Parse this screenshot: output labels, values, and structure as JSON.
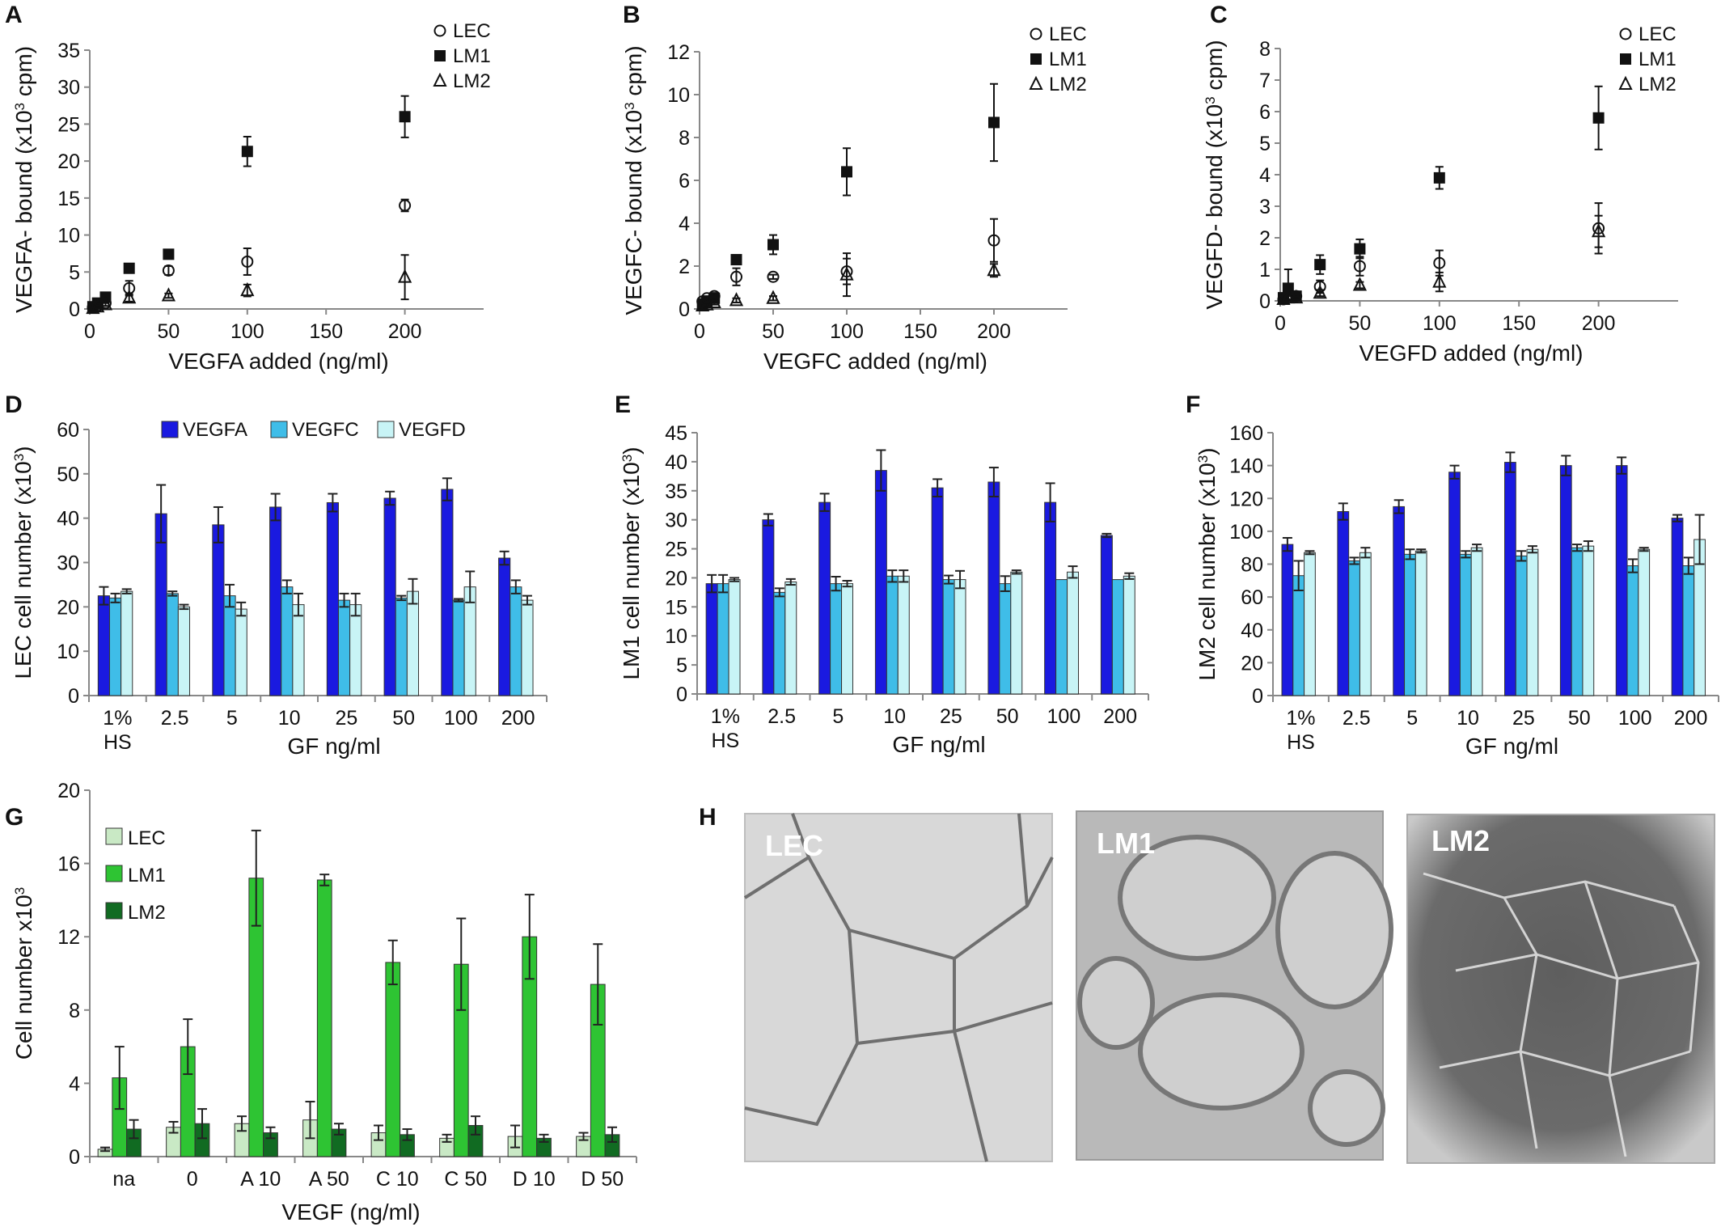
{
  "colors": {
    "VEGFA": "#1a1ae0",
    "VEGFC": "#3fbde8",
    "VEGFD": "#c8f4f6",
    "LEC_green": "#c9e9c5",
    "LM1_green": "#2ec433",
    "LM2_green": "#116b22"
  },
  "chart_data": [
    {
      "panel": "A",
      "type": "scatter",
      "xlabel": "VEGFA added (ng/ml)",
      "ylabel": "VEGFA- bound (x10³ cpm)",
      "xlim": [
        0,
        250
      ],
      "ylim": [
        0,
        35
      ],
      "xticks": [
        0,
        50,
        100,
        150,
        200
      ],
      "yticks": [
        0,
        5,
        10,
        15,
        20,
        25,
        30,
        35
      ],
      "legend": [
        "LEC",
        "LM1",
        "LM2"
      ],
      "legend_position": "top-right",
      "series": [
        {
          "name": "LEC",
          "marker": "circle-open",
          "x": [
            2,
            5,
            10,
            25,
            50,
            100,
            200
          ],
          "y": [
            0.2,
            0.4,
            0.8,
            2.8,
            5.2,
            6.4,
            14
          ],
          "err": [
            0.2,
            0.3,
            0.4,
            1.0,
            0.6,
            1.8,
            0.8
          ]
        },
        {
          "name": "LM1",
          "marker": "square-filled",
          "x": [
            2,
            5,
            10,
            25,
            50,
            100,
            200
          ],
          "y": [
            0.3,
            0.8,
            1.6,
            5.5,
            7.4,
            21.3,
            26
          ],
          "err": [
            0.2,
            0.2,
            0.3,
            0.4,
            0.6,
            2.0,
            2.8
          ]
        },
        {
          "name": "LM2",
          "marker": "triangle-open",
          "x": [
            2,
            5,
            10,
            25,
            50,
            100,
            200
          ],
          "y": [
            0.1,
            0.3,
            0.6,
            1.5,
            1.8,
            2.5,
            4.3
          ],
          "err": [
            0.1,
            0.2,
            0.2,
            0.5,
            0.3,
            0.8,
            3.0
          ]
        }
      ]
    },
    {
      "panel": "B",
      "type": "scatter",
      "xlabel": "VEGFC added (ng/ml)",
      "ylabel": "VEGFC- bound (x10³ cpm)",
      "xlim": [
        0,
        250
      ],
      "ylim": [
        0,
        12
      ],
      "xticks": [
        0,
        50,
        100,
        150,
        200
      ],
      "yticks": [
        0,
        2,
        4,
        6,
        8,
        10,
        12
      ],
      "legend": [
        "LEC",
        "LM1",
        "LM2"
      ],
      "legend_position": "top-right",
      "series": [
        {
          "name": "LEC",
          "marker": "circle-open",
          "x": [
            2,
            5,
            10,
            25,
            50,
            100,
            200
          ],
          "y": [
            0.35,
            0.5,
            0.6,
            1.5,
            1.5,
            1.75,
            3.2
          ],
          "err": [
            0.1,
            0.1,
            0.15,
            0.4,
            0.1,
            0.6,
            1.0
          ]
        },
        {
          "name": "LM1",
          "marker": "square-filled",
          "x": [
            2,
            5,
            10,
            25,
            50,
            100,
            200
          ],
          "y": [
            0.2,
            0.3,
            0.5,
            2.3,
            3.0,
            6.4,
            8.7
          ],
          "err": [
            0.1,
            0.1,
            0.1,
            0.2,
            0.45,
            1.1,
            1.8
          ]
        },
        {
          "name": "LM2",
          "marker": "triangle-open",
          "x": [
            2,
            5,
            10,
            25,
            50,
            100,
            200
          ],
          "y": [
            0.15,
            0.2,
            0.3,
            0.4,
            0.5,
            1.6,
            1.8
          ],
          "err": [
            0.1,
            0.1,
            0.1,
            0.1,
            0.1,
            1.0,
            0.3
          ]
        }
      ]
    },
    {
      "panel": "C",
      "type": "scatter",
      "xlabel": "VEGFD added (ng/ml)",
      "ylabel": "VEGFD- bound (x10³ cpm)",
      "xlim": [
        0,
        250
      ],
      "ylim": [
        0,
        8
      ],
      "xticks": [
        0,
        50,
        100,
        150,
        200
      ],
      "yticks": [
        0,
        1,
        2,
        3,
        4,
        5,
        6,
        7,
        8
      ],
      "legend": [
        "LEC",
        "LM1",
        "LM2"
      ],
      "legend_position": "top-right",
      "series": [
        {
          "name": "LEC",
          "marker": "circle-open",
          "x": [
            2,
            5,
            10,
            25,
            50,
            100,
            200
          ],
          "y": [
            0.05,
            0.1,
            0.15,
            0.45,
            1.1,
            1.2,
            2.3
          ],
          "err": [
            0.05,
            0.1,
            0.1,
            0.2,
            0.3,
            0.4,
            0.8
          ]
        },
        {
          "name": "LM1",
          "marker": "square-filled",
          "x": [
            2,
            5,
            10,
            25,
            50,
            100,
            200
          ],
          "y": [
            0.1,
            0.4,
            0.15,
            1.15,
            1.65,
            3.9,
            5.8
          ],
          "err": [
            0.05,
            0.6,
            0.1,
            0.3,
            0.3,
            0.35,
            1.0
          ]
        },
        {
          "name": "LM2",
          "marker": "triangle-open",
          "x": [
            2,
            5,
            10,
            25,
            50,
            100,
            200
          ],
          "y": [
            0.05,
            0.1,
            0.1,
            0.25,
            0.5,
            0.6,
            2.2
          ],
          "err": [
            0.05,
            0.05,
            0.05,
            0.1,
            0.1,
            0.3,
            0.5
          ]
        }
      ]
    },
    {
      "panel": "D",
      "type": "bar",
      "ylabel": "LEC cell number (x10³)",
      "xlabel": "GF ng/ml",
      "ylim": [
        0,
        60
      ],
      "yticks": [
        0,
        10,
        20,
        30,
        40,
        50,
        60
      ],
      "categories": [
        "1%\nHS",
        "2.5",
        "5",
        "10",
        "25",
        "50",
        "100",
        "200"
      ],
      "legend_position": "top",
      "series": [
        {
          "name": "VEGFA",
          "values": [
            22.5,
            41,
            38.5,
            42.5,
            43.5,
            44.5,
            46.5,
            31
          ],
          "err": [
            2,
            6.5,
            4,
            3,
            2,
            1.5,
            2.5,
            1.5
          ]
        },
        {
          "name": "VEGFC",
          "values": [
            22,
            23,
            22.5,
            24.5,
            21.5,
            22,
            21.5,
            24.5
          ],
          "err": [
            1,
            0.5,
            2.5,
            1.5,
            1.5,
            0.5,
            0.3,
            1.5
          ]
        },
        {
          "name": "VEGFD",
          "values": [
            23.5,
            20,
            19.5,
            20.5,
            20.5,
            23.5,
            24.5,
            21.5
          ],
          "err": [
            0.5,
            0.5,
            1.5,
            2.5,
            2.5,
            2.8,
            3.5,
            1
          ]
        }
      ]
    },
    {
      "panel": "E",
      "type": "bar",
      "ylabel": "LM1 cell number (x10³)",
      "xlabel": "GF ng/ml",
      "ylim": [
        0,
        45
      ],
      "yticks": [
        0,
        5,
        10,
        15,
        20,
        25,
        30,
        35,
        40,
        45
      ],
      "categories": [
        "1%\nHS",
        "2.5",
        "5",
        "10",
        "25",
        "50",
        "100",
        "200"
      ],
      "series": [
        {
          "name": "VEGFA",
          "values": [
            19,
            30,
            33,
            38.5,
            35.5,
            36.5,
            33,
            27.3
          ],
          "err": [
            1.5,
            1,
            1.5,
            3.5,
            1.5,
            2.5,
            3.3,
            0.3
          ]
        },
        {
          "name": "VEGFC",
          "values": [
            19,
            17.5,
            19,
            20.3,
            19.7,
            19,
            19.7,
            19.7
          ],
          "err": [
            1.5,
            0.7,
            1.2,
            1,
            0.7,
            1.3,
            0,
            0
          ]
        },
        {
          "name": "VEGFD",
          "values": [
            19.7,
            19.3,
            19,
            20.3,
            19.7,
            21,
            21,
            20.3
          ],
          "err": [
            0.3,
            0.5,
            0.5,
            1,
            1.5,
            0.3,
            1,
            0.5
          ]
        }
      ]
    },
    {
      "panel": "F",
      "type": "bar",
      "ylabel": "LM2 cell number (x10³)",
      "xlabel": "GF ng/ml",
      "ylim": [
        0,
        160
      ],
      "yticks": [
        0,
        20,
        40,
        60,
        80,
        100,
        120,
        140,
        160
      ],
      "categories": [
        "1%\nHS",
        "2.5",
        "5",
        "10",
        "25",
        "50",
        "100",
        "200"
      ],
      "series": [
        {
          "name": "VEGFA",
          "values": [
            92,
            112,
            115,
            136,
            142,
            140,
            140,
            108
          ],
          "err": [
            4,
            5,
            4,
            4,
            6,
            6,
            5,
            2
          ]
        },
        {
          "name": "VEGFC",
          "values": [
            73,
            82,
            86,
            86,
            85,
            90,
            79,
            79
          ],
          "err": [
            9,
            2,
            3,
            2,
            3,
            2,
            4,
            5
          ]
        },
        {
          "name": "VEGFD",
          "values": [
            87,
            87,
            88,
            90,
            89,
            91,
            89,
            95
          ],
          "err": [
            1,
            3,
            1,
            2,
            2,
            3,
            1,
            15
          ]
        }
      ]
    },
    {
      "panel": "G",
      "type": "bar",
      "ylabel": "Cell number x10³",
      "xlabel": "VEGF (ng/ml)",
      "ylim": [
        0,
        20
      ],
      "yticks": [
        0,
        4,
        8,
        12,
        16,
        20
      ],
      "categories": [
        "na",
        "0",
        "A 10",
        "A 50",
        "C 10",
        "C 50",
        "D 10",
        "D 50"
      ],
      "legend_position": "top-left",
      "series": [
        {
          "name": "LEC",
          "values": [
            0.4,
            1.6,
            1.8,
            2.0,
            1.3,
            1.0,
            1.1,
            1.1
          ],
          "err": [
            0.1,
            0.3,
            0.4,
            1.0,
            0.4,
            0.2,
            0.6,
            0.2
          ]
        },
        {
          "name": "LM1",
          "values": [
            4.3,
            6.0,
            15.2,
            15.1,
            10.6,
            10.5,
            12.0,
            9.4
          ],
          "err": [
            1.7,
            1.5,
            2.6,
            0.3,
            1.2,
            2.5,
            2.3,
            2.2
          ]
        },
        {
          "name": "LM2",
          "values": [
            1.5,
            1.8,
            1.3,
            1.5,
            1.2,
            1.7,
            1.0,
            1.2
          ],
          "err": [
            0.5,
            0.8,
            0.3,
            0.3,
            0.3,
            0.5,
            0.2,
            0.4
          ]
        }
      ]
    }
  ],
  "micrographs": {
    "panel": "H",
    "labels": [
      "LEC",
      "LM1",
      "LM2"
    ]
  }
}
